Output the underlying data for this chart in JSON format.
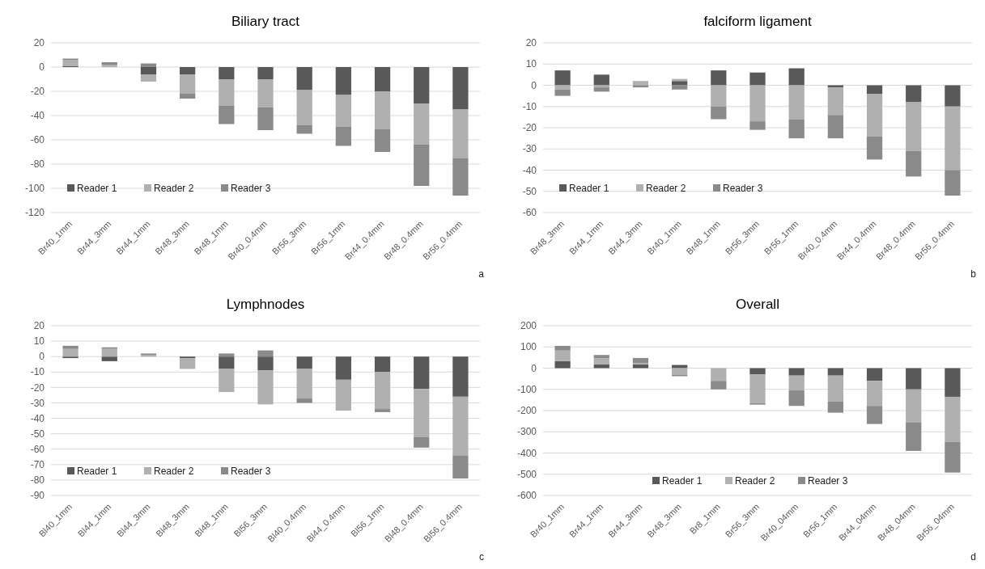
{
  "chart_data": [
    {
      "type": "bar",
      "title": "Biliary tract",
      "stacked": true,
      "grid": "y",
      "legend": "bottom left",
      "annotations": [
        "a"
      ],
      "categories": [
        "Br40_1mm",
        "Br44_3mm",
        "Br44_1mm",
        "Br48_3mm",
        "Br48_1mm",
        "Br40_0.4mm",
        "Br56_3mm",
        "Br56_1mm",
        "Br44_0.4mm",
        "Br48_0.4mm",
        "Br56_0.4mm"
      ],
      "ylim": [
        -120,
        20
      ],
      "yticks": [
        -120,
        -100,
        -80,
        -60,
        -40,
        -20,
        0,
        20
      ],
      "series": [
        {
          "name": "Reader 1",
          "color": "#595959",
          "values": [
            1,
            0,
            -6,
            -6,
            -10,
            -10,
            -19,
            -23,
            -20,
            -30,
            -35
          ]
        },
        {
          "name": "Reader 2",
          "color": "#b0b0b0",
          "values": [
            5,
            2,
            -6,
            -16,
            -22,
            -23,
            -29,
            -26,
            -31,
            -34,
            -40
          ]
        },
        {
          "name": "Reader 3",
          "color": "#8a8a8a",
          "values": [
            1,
            2,
            3,
            -4,
            -15,
            -19,
            -7,
            -16,
            -19,
            -34,
            -31
          ]
        }
      ]
    },
    {
      "type": "bar",
      "title": "falciform ligament",
      "stacked": true,
      "grid": "y",
      "legend": "bottom left",
      "annotations": [
        "b"
      ],
      "categories": [
        "Br48_3mm",
        "Br44_1mm",
        "Br44_3mm",
        "Br40_1mm",
        "Br48_1mm",
        "Br56_3mm",
        "Br56_1mm",
        "Br40_0.4mm",
        "Br44_0.4mm",
        "Br48_0.4mm",
        "Br56_0.4mm"
      ],
      "ylim": [
        -60,
        20
      ],
      "yticks": [
        -60,
        -50,
        -40,
        -30,
        -20,
        -10,
        0,
        10,
        20
      ],
      "series": [
        {
          "name": "Reader 1",
          "color": "#595959",
          "values": [
            7,
            5,
            0,
            2,
            7,
            6,
            8,
            -1,
            -4,
            -8,
            -10
          ]
        },
        {
          "name": "Reader 2",
          "color": "#b0b0b0",
          "values": [
            -2,
            -1,
            2,
            1,
            -10,
            -17,
            -16,
            -13,
            -20,
            -23,
            -30
          ]
        },
        {
          "name": "Reader 3",
          "color": "#8a8a8a",
          "values": [
            -3,
            -2,
            -1,
            -2,
            -6,
            -4,
            -9,
            -11,
            -11,
            -12,
            -12
          ]
        }
      ]
    },
    {
      "type": "bar",
      "title": "Lymphnodes",
      "stacked": true,
      "grid": "y",
      "legend": "bottom left",
      "annotations": [
        "c"
      ],
      "categories": [
        "Bl40_1mm",
        "Bl44_1mm",
        "Bl44_3mm",
        "Bl48_3mm",
        "Bl48_1mm",
        "Bl56_3mm",
        "Bl40_0.4mm",
        "Bl44_0.4mm",
        "Bl56_1mm",
        "Bl48_0.4mm",
        "Bl56_0.4mm"
      ],
      "ylim": [
        -90,
        20
      ],
      "yticks": [
        -90,
        -80,
        -70,
        -60,
        -50,
        -40,
        -30,
        -20,
        -10,
        0,
        10,
        20
      ],
      "series": [
        {
          "name": "Reader 1",
          "color": "#595959",
          "values": [
            -1,
            -3,
            0,
            -1,
            -8,
            -9,
            -8,
            -15,
            -10,
            -21,
            -26
          ]
        },
        {
          "name": "Reader 2",
          "color": "#b0b0b0",
          "values": [
            5,
            5,
            1,
            -7,
            -15,
            -22,
            -19,
            -20,
            -24,
            -31,
            -38
          ]
        },
        {
          "name": "Reader 3",
          "color": "#8a8a8a",
          "values": [
            2,
            1,
            1,
            0,
            2,
            4,
            -3,
            0,
            -2,
            -7,
            -15
          ]
        }
      ]
    },
    {
      "type": "bar",
      "title": "Overall",
      "stacked": true,
      "grid": "y",
      "legend": "bottom",
      "annotations": [
        "d"
      ],
      "categories": [
        "Br40_1mm",
        "Br44_1mm",
        "Br44_3mm",
        "Br48_3mm",
        "Br8_1mm",
        "Br56_3mm",
        "Br40_04mm",
        "Br56_1mm",
        "Br44_04mm",
        "Br48_04mm",
        "Br56_04mm"
      ],
      "ylim": [
        -600,
        200
      ],
      "yticks": [
        -600,
        -500,
        -400,
        -300,
        -200,
        -100,
        0,
        100,
        200
      ],
      "series": [
        {
          "name": "Reader 1",
          "color": "#595959",
          "values": [
            33,
            17,
            17,
            15,
            0,
            -30,
            -35,
            -35,
            -60,
            -100,
            -135
          ]
        },
        {
          "name": "Reader 2",
          "color": "#b0b0b0",
          "values": [
            50,
            30,
            8,
            -32,
            -60,
            -135,
            -70,
            -122,
            -118,
            -155,
            -212
          ]
        },
        {
          "name": "Reader 3",
          "color": "#8a8a8a",
          "values": [
            22,
            15,
            23,
            -6,
            -40,
            -7,
            -73,
            -53,
            -85,
            -135,
            -145
          ]
        }
      ]
    }
  ]
}
